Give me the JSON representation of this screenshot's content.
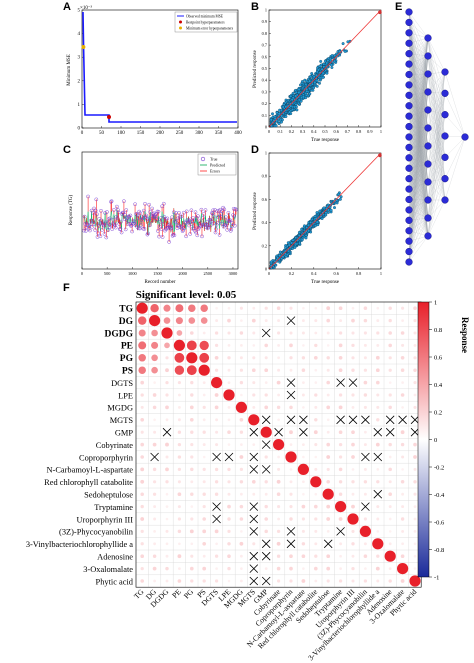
{
  "panels": {
    "A": {
      "letter": "A",
      "ylabel": "Minimum MSE",
      "exponent": "×10⁻³",
      "xticks": [
        "0",
        "50",
        "100",
        "150",
        "200",
        "250",
        "300",
        "350",
        "400"
      ],
      "yticks": [
        "0",
        "1",
        "2",
        "3",
        "4",
        "5"
      ],
      "legend": [
        "Observed minimum MSE",
        "Bestpoint hyperparameters",
        "Minimum error hyperparameters"
      ],
      "colors": {
        "line": "#1a1aff",
        "best": "#cc0000",
        "minerr": "#e8b000"
      }
    },
    "B": {
      "letter": "B",
      "xlabel": "True response",
      "ylabel": "Predicted response",
      "ticks": [
        "0",
        "0.1",
        "0.2",
        "0.3",
        "0.4",
        "0.5",
        "0.6",
        "0.7",
        "0.8",
        "0.9",
        "1"
      ]
    },
    "C": {
      "letter": "C",
      "xlabel": "Record number",
      "ylabel": "Response (TG)",
      "xticks": [
        "0",
        "500",
        "1000",
        "1500",
        "2000",
        "2500",
        "3000"
      ],
      "legend": [
        "True",
        "Predicted",
        "Errors"
      ],
      "colors": {
        "true": "#7a3fd0",
        "predicted": "#00a651",
        "errors": "#ff2020"
      }
    },
    "D": {
      "letter": "D",
      "xlabel": "True response",
      "ylabel": "Predicted response",
      "ticks": [
        "0",
        "0.2",
        "0.4",
        "0.6",
        "0.8",
        "1"
      ]
    },
    "E": {
      "letter": "E"
    },
    "F": {
      "letter": "F",
      "title": "Significant level: 0.05",
      "colorbar_label": "Response",
      "colorbar_ticks": [
        "1",
        "0.8",
        "0.6",
        "0.4",
        "0.2",
        "0",
        "-0.2",
        "-0.4",
        "-0.6",
        "-0.8",
        "-1"
      ],
      "colors": {
        "pos": "#e8202a",
        "neg": "#1a2a9a"
      }
    }
  },
  "chart_data": {
    "type": "heatmap",
    "title": "Significant level: 0.05",
    "variables": [
      "TG",
      "DG",
      "DGDG",
      "PE",
      "PG",
      "PS",
      "DGTS",
      "LPE",
      "MGDG",
      "MGTS",
      "GMP",
      "Cobyrinate",
      "Coproporphyrin",
      "N-Carbamoyl-L-aspartate",
      "Red chlorophyll catabolite",
      "Sedoheptulose",
      "Tryptamine",
      "Uroporphyrin III",
      "(3Z)-Phycocyanobilin",
      "3-Vinylbacteriochlorophyllide a",
      "Adenosine",
      "3-Oxalomalate",
      "Phytic acid"
    ],
    "colorbar_range": [
      -1,
      1
    ],
    "strong_pairs": [
      [
        "TG",
        "DG",
        0.7
      ],
      [
        "TG",
        "DGDG",
        0.55
      ],
      [
        "TG",
        "PE",
        0.65
      ],
      [
        "TG",
        "PG",
        0.6
      ],
      [
        "TG",
        "PS",
        0.6
      ],
      [
        "DG",
        "DGDG",
        0.5
      ],
      [
        "DG",
        "PE",
        0.55
      ],
      [
        "DG",
        "PG",
        0.5
      ],
      [
        "DG",
        "PS",
        0.5
      ],
      [
        "PE",
        "PG",
        0.85
      ],
      [
        "PE",
        "PS",
        0.8
      ],
      [
        "PG",
        "PS",
        0.85
      ],
      [
        "DGDG",
        "PE",
        0.4
      ]
    ],
    "nonsignificant_pairs": [
      [
        "DGDG",
        "GMP"
      ],
      [
        "DGTS",
        "Coproporphyrin"
      ],
      [
        "DGTS",
        "Uroporphyrin III"
      ],
      [
        "LPE",
        "Coproporphyrin"
      ],
      [
        "MGTS",
        "GMP"
      ],
      [
        "MGTS",
        "Coproporphyrin"
      ],
      [
        "MGTS",
        "N-Carbamoyl-L-aspartate"
      ],
      [
        "MGTS",
        "Uroporphyrin III"
      ],
      [
        "MGTS",
        "(3Z)-Phycocyanobilin"
      ],
      [
        "MGTS",
        "Adenosine"
      ],
      [
        "MGTS",
        "3-Oxalomalate"
      ],
      [
        "MGTS",
        "Phytic acid"
      ],
      [
        "GMP",
        "Cobyrinate"
      ],
      [
        "DG",
        "Coproporphyrin"
      ],
      [
        "DGTS",
        "Coproporphyrin"
      ],
      [
        "LPE",
        "Coproporphyrin"
      ],
      [
        "Coproporphyrin",
        "(3Z)-Phycocyanobilin"
      ],
      [
        "Coproporphyrin",
        "3-Vinylbacteriochlorophyllide a"
      ],
      [
        "MGTS",
        "Coproporphyrin"
      ],
      [
        "GMP",
        "N-Carbamoyl-L-aspartate"
      ],
      [
        "DGTS",
        "Tryptamine"
      ],
      [
        "MGTS",
        "Tryptamine"
      ],
      [
        "Tryptamine",
        "(3Z)-Phycocyanobilin"
      ],
      [
        "MGTS",
        "(3Z)-Phycocyanobilin"
      ],
      [
        "Coproporphyrin",
        "(3Z)-Phycocyanobilin"
      ],
      [
        "GMP",
        "3-Vinylbacteriochlorophyllide a"
      ],
      [
        "Sedoheptulose",
        "3-Vinylbacteriochlorophyllide a"
      ],
      [
        "GMP",
        "Adenosine"
      ],
      [
        "GMP",
        "Phytic acid"
      ]
    ]
  }
}
